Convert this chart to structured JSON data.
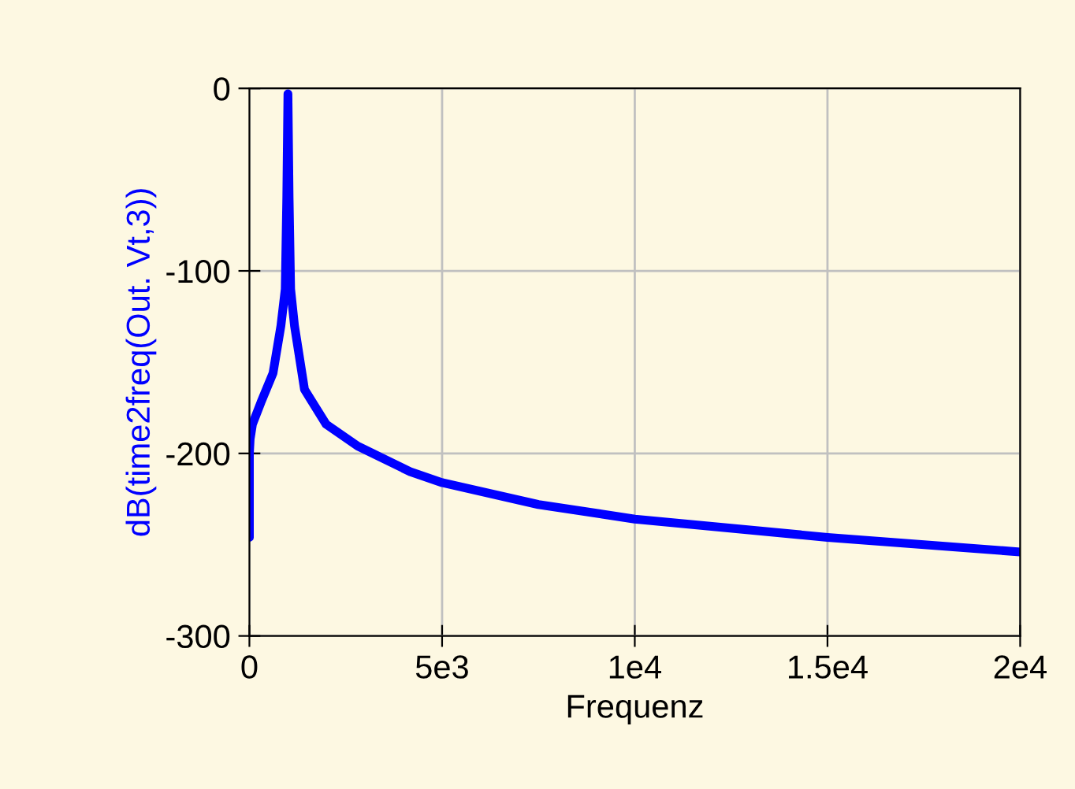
{
  "chart_data": {
    "type": "line",
    "xlabel": "Frequenz",
    "ylabel": "dB(time2freq(Out. Vt,3))",
    "series": [
      {
        "color": "#0000ff",
        "x": [
          0,
          0,
          20,
          80,
          300,
          613,
          818,
          930,
          970,
          1000,
          1030,
          1070,
          1170,
          1430,
          1990,
          2810,
          4170,
          5000,
          7500,
          10000,
          15000,
          20000
        ],
        "values": [
          -246,
          -200,
          -192,
          -184,
          -172,
          -156,
          -130,
          -110,
          -60,
          -3,
          -60,
          -110,
          -130,
          -165,
          -184,
          -196,
          -210,
          -216,
          -228,
          -236,
          -246,
          -254
        ]
      }
    ],
    "xlim": [
      0,
      20000
    ],
    "ylim": [
      -300,
      0
    ],
    "xticks": [
      {
        "value": 0,
        "label": "0"
      },
      {
        "value": 5000,
        "label": "5e3"
      },
      {
        "value": 10000,
        "label": "1e4"
      },
      {
        "value": 15000,
        "label": "1.5e4"
      },
      {
        "value": 20000,
        "label": "2e4"
      }
    ],
    "yticks": [
      0,
      -100,
      -200,
      -300
    ],
    "grid": true,
    "line_style": "solid",
    "marker": "none"
  }
}
